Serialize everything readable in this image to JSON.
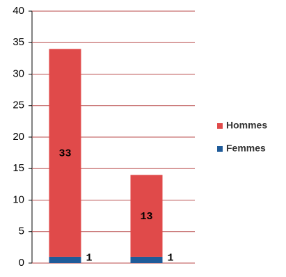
{
  "chart_data": {
    "type": "stacked_bar",
    "categories": [
      null,
      null
    ],
    "series": [
      {
        "name": "Femmes",
        "color": "#1f5b99",
        "values": [
          1,
          1
        ]
      },
      {
        "name": "Hommes",
        "color": "#e04a4a",
        "values": [
          33,
          13
        ]
      }
    ],
    "ylim": [
      0,
      40
    ],
    "yticks": [
      0,
      5,
      10,
      15,
      20,
      25,
      30,
      35,
      40
    ],
    "grid": true,
    "legend": "right"
  }
}
